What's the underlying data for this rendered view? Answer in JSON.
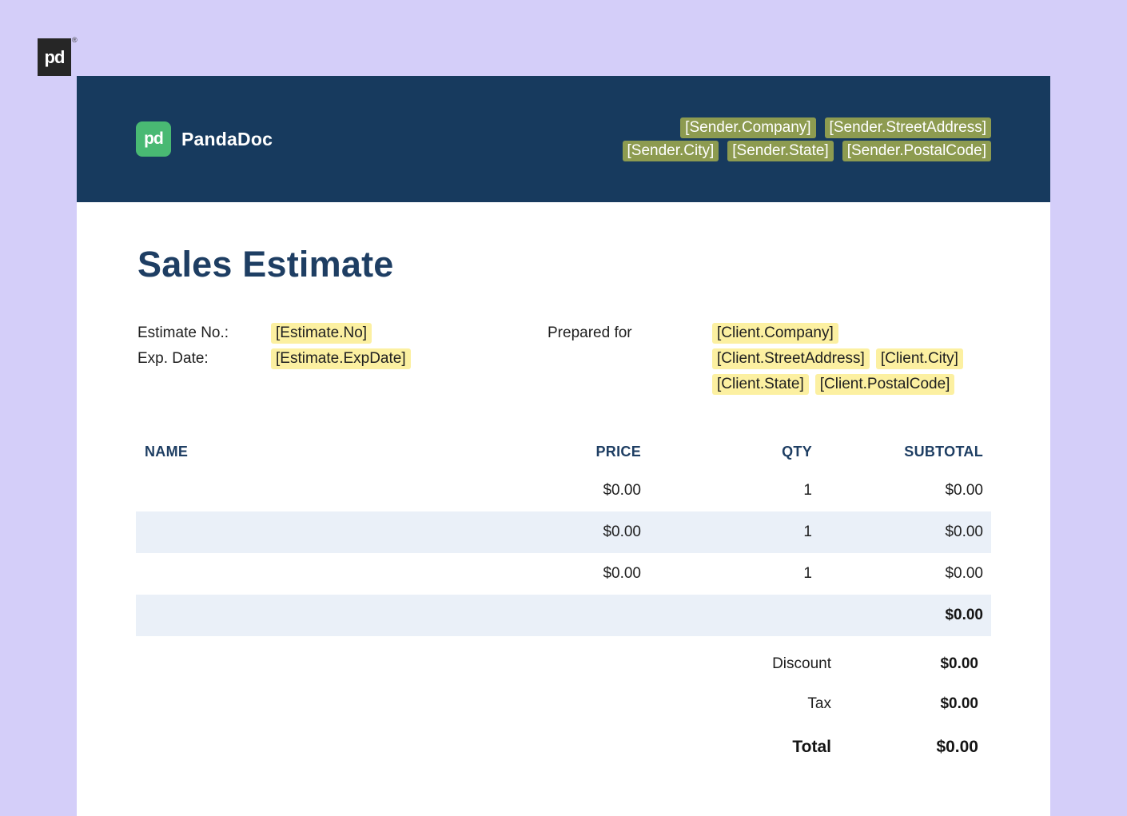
{
  "watermark": {
    "logo_text": "pd",
    "registered_mark": "®"
  },
  "document": {
    "header": {
      "logo_text": "pd",
      "brand_name": "PandaDoc",
      "sender_line1": [
        "[Sender.Company]",
        "[Sender.StreetAddress]"
      ],
      "sender_line2": [
        "[Sender.City]",
        "[Sender.State]",
        "[Sender.PostalCode]"
      ]
    },
    "title": "Sales Estimate",
    "info": {
      "estimate_no_label": "Estimate No.:",
      "estimate_no_token": "[Estimate.No]",
      "exp_date_label": "Exp. Date:",
      "exp_date_token": "[Estimate.ExpDate]",
      "prepared_for_label": "Prepared for",
      "client_line1": [
        "[Client.Company]"
      ],
      "client_line2": [
        "[Client.StreetAddress]",
        "[Client.City]"
      ],
      "client_line3": [
        "[Client.State]",
        "[Client.PostalCode]"
      ]
    },
    "table": {
      "headers": [
        "NAME",
        "PRICE",
        "QTY",
        "SUBTOTAL"
      ],
      "rows": [
        {
          "name": "",
          "price": "$0.00",
          "qty": "1",
          "subtotal": "$0.00"
        },
        {
          "name": "",
          "price": "$0.00",
          "qty": "1",
          "subtotal": "$0.00"
        },
        {
          "name": "",
          "price": "$0.00",
          "qty": "1",
          "subtotal": "$0.00"
        }
      ],
      "total_row": {
        "subtotal": "$0.00"
      }
    },
    "summary": [
      {
        "label": "Discount",
        "value": "$0.00"
      },
      {
        "label": "Tax",
        "value": "$0.00"
      },
      {
        "label": "Total",
        "value": "$0.00"
      }
    ]
  },
  "colors": {
    "bg_lavender": "#d4cef9",
    "header_navy": "#173a5e",
    "brand_green": "#49b973",
    "sender_token_bg": "#8d9b50",
    "field_token_bg": "#fcf0a1",
    "row_alt_bg": "#eaf0f8",
    "heading_navy": "#1e3e63",
    "text_dark": "#202020",
    "watermark_bg": "#262626"
  }
}
